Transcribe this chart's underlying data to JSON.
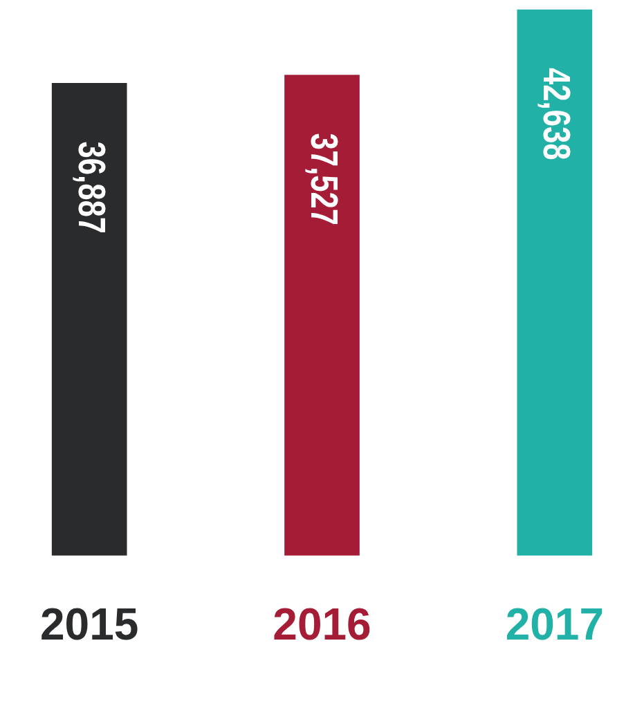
{
  "chart_data": {
    "type": "bar",
    "categories": [
      "2015",
      "2016",
      "2017"
    ],
    "values": [
      36887,
      37527,
      42638
    ],
    "colors": [
      "#2a2b2d",
      "#a51c36",
      "#21b1a6"
    ],
    "value_labels": [
      "36,887",
      "37,527",
      "42,638"
    ]
  }
}
